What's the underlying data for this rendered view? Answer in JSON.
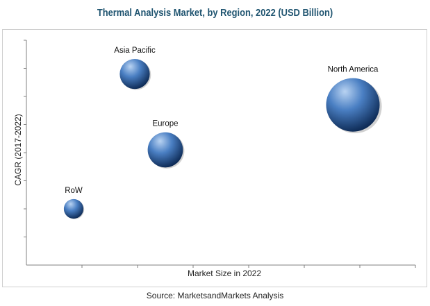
{
  "header": {
    "title": "Thermal Analysis Market, by Region, 2022 (USD Billion)"
  },
  "footer": {
    "source": "Source: MarketsandMarkets Analysis"
  },
  "colors": {
    "title": "#1f5470",
    "bubble_highlight": "#b9d3f2",
    "bubble_mid": "#4a7fc3",
    "bubble_dark": "#0d2a55",
    "axis": "#808080"
  },
  "chart_data": {
    "type": "scatter",
    "variant": "bubble",
    "title": "Thermal Analysis Market, by Region, 2022 (USD Billion)",
    "xlabel": "Market Size in 2022",
    "ylabel": "CAGR (2017-2022)",
    "xlim": [
      0,
      14
    ],
    "ylim": [
      0,
      8
    ],
    "grid": false,
    "legend": "none",
    "series": [
      {
        "name": "Asia Pacific",
        "x": 3.9,
        "y": 6.8,
        "size": 23
      },
      {
        "name": "North America",
        "x": 11.75,
        "y": 5.7,
        "size": 41
      },
      {
        "name": "Europe",
        "x": 5.0,
        "y": 4.1,
        "size": 27
      },
      {
        "name": "RoW",
        "x": 1.7,
        "y": 2.0,
        "size": 15
      }
    ]
  }
}
